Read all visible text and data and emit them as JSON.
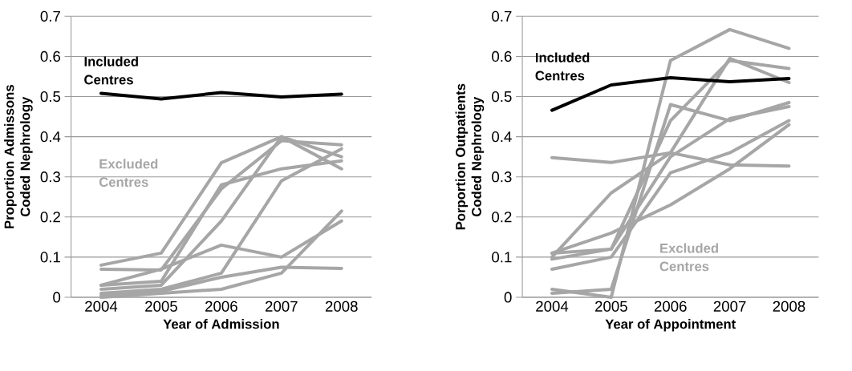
{
  "chart_data": [
    {
      "type": "line",
      "xlabel": "Year of Admission",
      "ylabel": "Proportion Admissons Coded Nephrology",
      "categories": [
        "2004",
        "2005",
        "2006",
        "2007",
        "2008"
      ],
      "ylim": [
        0,
        0.7
      ],
      "yticks": [
        0,
        0.1,
        0.2,
        0.3,
        0.4,
        0.5,
        0.6,
        0.7
      ],
      "grid": "y",
      "series": [
        {
          "name": "Excluded Centres",
          "color": "#a6a6a6",
          "values": [
            0.08,
            0.11,
            0.335,
            0.4,
            0.32
          ]
        },
        {
          "color": "#a6a6a6",
          "values": [
            0.07,
            0.068,
            0.27,
            0.39,
            0.38
          ]
        },
        {
          "color": "#a6a6a6",
          "values": [
            0.03,
            0.04,
            0.28,
            0.32,
            0.34
          ]
        },
        {
          "color": "#a6a6a6",
          "values": [
            0.02,
            0.03,
            0.19,
            0.4,
            0.35
          ]
        },
        {
          "color": "#a6a6a6",
          "values": [
            0.01,
            0.02,
            0.06,
            0.29,
            0.37
          ]
        },
        {
          "color": "#a6a6a6",
          "values": [
            0.03,
            0.07,
            0.13,
            0.1,
            0.19
          ]
        },
        {
          "color": "#a6a6a6",
          "values": [
            0.005,
            0.015,
            0.05,
            0.075,
            0.072
          ]
        },
        {
          "color": "#a6a6a6",
          "values": [
            0.0,
            0.01,
            0.02,
            0.06,
            0.215
          ]
        },
        {
          "name": "Included Centres",
          "color": "#000000",
          "values": [
            0.508,
            0.494,
            0.51,
            0.499,
            0.506
          ]
        }
      ]
    },
    {
      "type": "line",
      "xlabel": "Year of Appointment",
      "ylabel": "Porportion Outpatients Coded Nephrology",
      "categories": [
        "2004",
        "2005",
        "2006",
        "2007",
        "2008"
      ],
      "ylim": [
        0,
        0.7
      ],
      "yticks": [
        0,
        0.1,
        0.2,
        0.3,
        0.4,
        0.5,
        0.6,
        0.7
      ],
      "grid": "y",
      "series": [
        {
          "name": "Excluded Centres",
          "color": "#a6a6a6",
          "values": [
            0.348,
            0.336,
            0.36,
            0.33,
            0.327
          ]
        },
        {
          "color": "#a6a6a6",
          "values": [
            0.02,
            0.0,
            0.59,
            0.667,
            0.62
          ]
        },
        {
          "color": "#a6a6a6",
          "values": [
            0.11,
            0.12,
            0.44,
            0.59,
            0.57
          ]
        },
        {
          "color": "#a6a6a6",
          "values": [
            0.01,
            0.02,
            0.48,
            0.44,
            0.485
          ]
        },
        {
          "color": "#a6a6a6",
          "values": [
            0.1,
            0.26,
            0.36,
            0.595,
            0.535
          ]
        },
        {
          "color": "#a6a6a6",
          "values": [
            0.07,
            0.1,
            0.31,
            0.36,
            0.44
          ]
        },
        {
          "color": "#a6a6a6",
          "values": [
            0.11,
            0.16,
            0.23,
            0.32,
            0.43
          ]
        },
        {
          "color": "#a6a6a6",
          "values": [
            0.095,
            0.12,
            0.35,
            0.445,
            0.475
          ]
        },
        {
          "name": "Included Centres",
          "color": "#000000",
          "values": [
            0.466,
            0.529,
            0.547,
            0.537,
            0.545
          ]
        }
      ]
    }
  ]
}
